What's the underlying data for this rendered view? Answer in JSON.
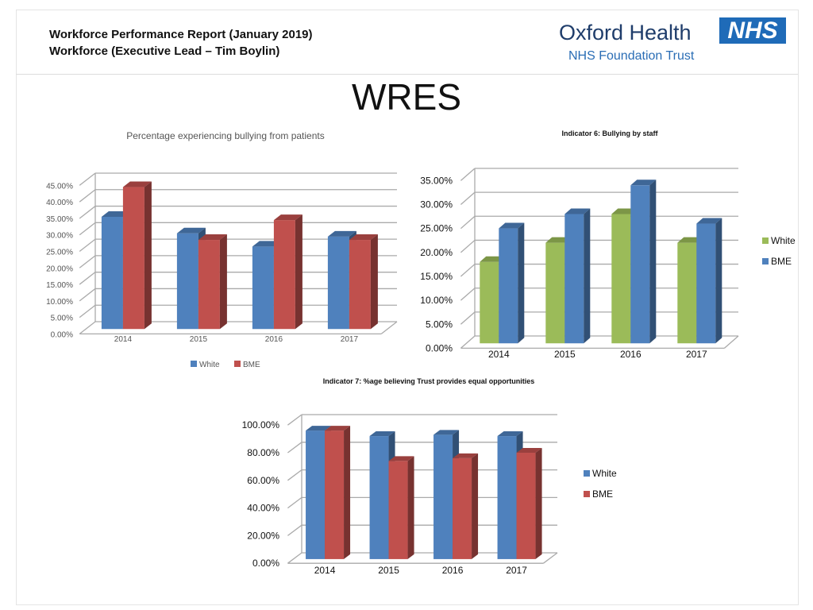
{
  "header": {
    "line1": "Workforce Performance Report (January 2019)",
    "line2": "Workforce (Executive Lead – Tim Boylin)"
  },
  "logo": {
    "org": "Oxford Health",
    "sub": "NHS Foundation Trust",
    "badge": "NHS"
  },
  "page_title": "WRES",
  "colors": {
    "white_blue": "#4f81bd",
    "bme_red": "#c0504d",
    "white_green": "#9bbb59"
  },
  "chart_data": [
    {
      "type": "bar",
      "style": "3d-clustered",
      "title": "Percentage experiencing bullying from patients",
      "categories": [
        "2014",
        "2015",
        "2016",
        "2017"
      ],
      "ylim": [
        0,
        45
      ],
      "ytick_step": 5,
      "yticks": [
        "0.00%",
        "5.00%",
        "10.00%",
        "15.00%",
        "20.00%",
        "25.00%",
        "30.00%",
        "35.00%",
        "40.00%",
        "45.00%"
      ],
      "legend": "bottom",
      "grid": true,
      "series": [
        {
          "name": "White",
          "color": "#4f81bd",
          "values": [
            34,
            29,
            25,
            28
          ]
        },
        {
          "name": "BME",
          "color": "#c0504d",
          "values": [
            43,
            27,
            33,
            27
          ]
        }
      ]
    },
    {
      "type": "bar",
      "style": "3d-clustered",
      "title": "Indicator 6: Bullying by staff",
      "categories": [
        "2014",
        "2015",
        "2016",
        "2017"
      ],
      "ylim": [
        0,
        35
      ],
      "ytick_step": 5,
      "yticks": [
        "0.00%",
        "5.00%",
        "10.00%",
        "15.00%",
        "20.00%",
        "25.00%",
        "30.00%",
        "35.00%"
      ],
      "legend": "right",
      "grid": true,
      "series": [
        {
          "name": "White",
          "color": "#9bbb59",
          "values": [
            17,
            21,
            27,
            21
          ]
        },
        {
          "name": "BME",
          "color": "#4f81bd",
          "values": [
            24,
            27,
            33,
            25
          ]
        }
      ]
    },
    {
      "type": "bar",
      "style": "3d-clustered",
      "title": "Indicator 7: %age believing Trust provides equal opportunities",
      "categories": [
        "2014",
        "2015",
        "2016",
        "2017"
      ],
      "ylim": [
        0,
        100
      ],
      "ytick_step": 20,
      "yticks": [
        "0.00%",
        "20.00%",
        "40.00%",
        "60.00%",
        "80.00%",
        "100.00%"
      ],
      "legend": "right",
      "grid": true,
      "series": [
        {
          "name": "White",
          "color": "#4f81bd",
          "values": [
            93,
            89,
            90,
            89
          ]
        },
        {
          "name": "BME",
          "color": "#c0504d",
          "values": [
            93,
            71,
            73,
            77
          ]
        }
      ]
    }
  ]
}
